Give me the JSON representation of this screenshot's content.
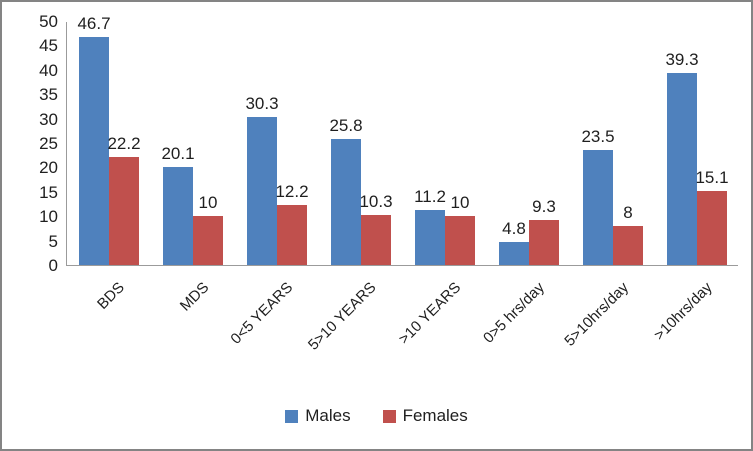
{
  "chart_data": {
    "type": "bar",
    "title": "",
    "xlabel": "",
    "ylabel": "",
    "categories": [
      "BDS",
      "MDS",
      "0<5 YEARS",
      "5>10 YEARS",
      ">10 YEARS",
      "0>5 hrs/day",
      "5>10hrs/day",
      ">10hrs/day"
    ],
    "series": [
      {
        "name": "Males",
        "color": "#4F81BD",
        "values": [
          46.7,
          20.1,
          30.3,
          25.8,
          11.2,
          4.8,
          23.5,
          39.3
        ]
      },
      {
        "name": "Females",
        "color": "#C0504D",
        "values": [
          22.2,
          10,
          12.2,
          10.3,
          10,
          9.3,
          8,
          15.1
        ]
      }
    ],
    "ylim": [
      0,
      50
    ],
    "yticks": [
      0,
      5,
      10,
      15,
      20,
      25,
      30,
      35,
      40,
      45,
      50
    ],
    "grid": false,
    "data_labels": true,
    "legend_position": "bottom"
  }
}
